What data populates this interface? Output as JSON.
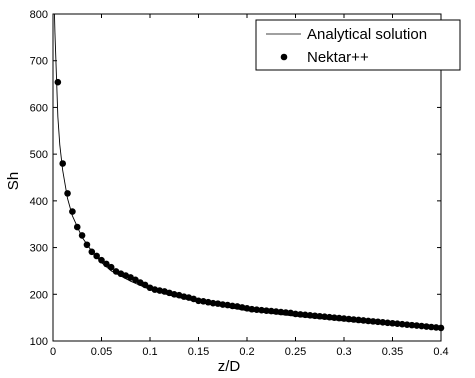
{
  "chart_data": {
    "type": "line",
    "xlabel": "z/D",
    "ylabel": "Sh",
    "xlim": [
      0,
      0.4
    ],
    "ylim": [
      100,
      800
    ],
    "xticks": [
      0,
      0.05,
      0.1,
      0.15,
      0.2,
      0.25,
      0.3,
      0.35,
      0.4
    ],
    "xtick_labels": [
      "0",
      "0.05",
      "0.1",
      "0.15",
      "0.2",
      "0.25",
      "0.3",
      "0.35",
      "0.4"
    ],
    "yticks": [
      100,
      200,
      300,
      400,
      500,
      600,
      700,
      800
    ],
    "ytick_labels": [
      "100",
      "200",
      "300",
      "400",
      "500",
      "600",
      "700",
      "800"
    ],
    "grid": false,
    "legend_position": "top-right",
    "series": [
      {
        "name": "Analytical solution",
        "style": "line",
        "color": "#000000",
        "x": [
          0.0015,
          0.002,
          0.003,
          0.004,
          0.005,
          0.007,
          0.01,
          0.015,
          0.02,
          0.03,
          0.04,
          0.05,
          0.06,
          0.08,
          0.1,
          0.12,
          0.15,
          0.2,
          0.25,
          0.3,
          0.35,
          0.4
        ],
        "y": [
          800,
          760,
          700,
          640,
          580,
          520,
          465,
          405,
          368,
          322,
          292,
          268,
          250,
          228,
          210,
          198,
          183,
          165,
          153,
          143,
          134,
          127
        ]
      },
      {
        "name": "Nektar++",
        "style": "marker",
        "color": "#000000",
        "x": [
          0.005,
          0.01,
          0.015,
          0.02,
          0.025,
          0.03,
          0.035,
          0.04,
          0.045,
          0.05,
          0.055,
          0.06,
          0.065,
          0.07,
          0.075,
          0.08,
          0.085,
          0.09,
          0.095,
          0.1,
          0.105,
          0.11,
          0.115,
          0.12,
          0.125,
          0.13,
          0.135,
          0.14,
          0.145,
          0.15,
          0.155,
          0.16,
          0.165,
          0.17,
          0.175,
          0.18,
          0.185,
          0.19,
          0.195,
          0.2,
          0.205,
          0.21,
          0.215,
          0.22,
          0.225,
          0.23,
          0.235,
          0.24,
          0.245,
          0.25,
          0.255,
          0.26,
          0.265,
          0.27,
          0.275,
          0.28,
          0.285,
          0.29,
          0.295,
          0.3,
          0.305,
          0.31,
          0.315,
          0.32,
          0.325,
          0.33,
          0.335,
          0.34,
          0.345,
          0.35,
          0.355,
          0.36,
          0.365,
          0.37,
          0.375,
          0.38,
          0.385,
          0.39,
          0.395,
          0.4
        ],
        "y": [
          654,
          480,
          416,
          377,
          344,
          326,
          306,
          291,
          282,
          273,
          265,
          258,
          249,
          244,
          240,
          236,
          231,
          225,
          220,
          214,
          210,
          208,
          206,
          203,
          200,
          198,
          195,
          193,
          190,
          186,
          185,
          183,
          181,
          180,
          178,
          177,
          175,
          174,
          172,
          170,
          168,
          167,
          166,
          165,
          164,
          163,
          162,
          161,
          160,
          158,
          157,
          156,
          155,
          154,
          153,
          152,
          151,
          150,
          149,
          148,
          147,
          146,
          145,
          144,
          143,
          142,
          141,
          140,
          139,
          138,
          137,
          136,
          135,
          134,
          133,
          132,
          131,
          130,
          129,
          128
        ]
      }
    ]
  }
}
